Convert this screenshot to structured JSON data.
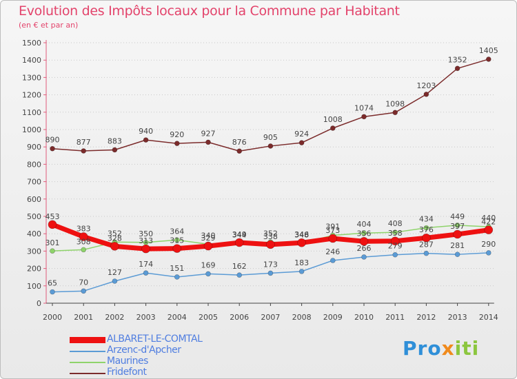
{
  "title": "Evolution des Impôts locaux pour la Commune par Habitant",
  "subtitle": "(en € et par an)",
  "logo": {
    "part1": "Pro",
    "part2": "x",
    "part3": "iti"
  },
  "chart_data": {
    "type": "line",
    "title": "Evolution des Impôts locaux pour la Commune par Habitant",
    "xlabel": "",
    "ylabel": "(en € et par an)",
    "ylim": [
      0,
      1500
    ],
    "yticks": [
      0,
      100,
      200,
      300,
      400,
      500,
      600,
      700,
      800,
      900,
      1000,
      1100,
      1200,
      1300,
      1400,
      1500
    ],
    "categories": [
      "2000",
      "2001",
      "2002",
      "2003",
      "2004",
      "2005",
      "2006",
      "2007",
      "2008",
      "2009",
      "2010",
      "2011",
      "2012",
      "2013",
      "2014"
    ],
    "legend_position": "bottom-left",
    "grid": "horizontal dotted",
    "series": [
      {
        "name": "ALBARET-LE-COMTAL",
        "color": "#ee1111",
        "values": [
          453,
          383,
          328,
          313,
          315,
          329,
          349,
          338,
          348,
          373,
          356,
          358,
          376,
          397,
          422
        ]
      },
      {
        "name": "Arzenc-d'Apcher",
        "color": "#5b9bd5",
        "values": [
          65,
          70,
          127,
          174,
          151,
          169,
          162,
          173,
          183,
          246,
          266,
          279,
          287,
          281,
          290
        ]
      },
      {
        "name": "Maurines",
        "color": "#8ed36a",
        "values": [
          301,
          308,
          352,
          350,
          364,
          340,
          344,
          352,
          346,
          391,
          404,
          408,
          434,
          449,
          440
        ]
      },
      {
        "name": "Fridefont",
        "color": "#7b2b2b",
        "values": [
          890,
          877,
          883,
          940,
          920,
          927,
          876,
          905,
          924,
          1008,
          1074,
          1098,
          1203,
          1352,
          1405
        ]
      }
    ]
  }
}
